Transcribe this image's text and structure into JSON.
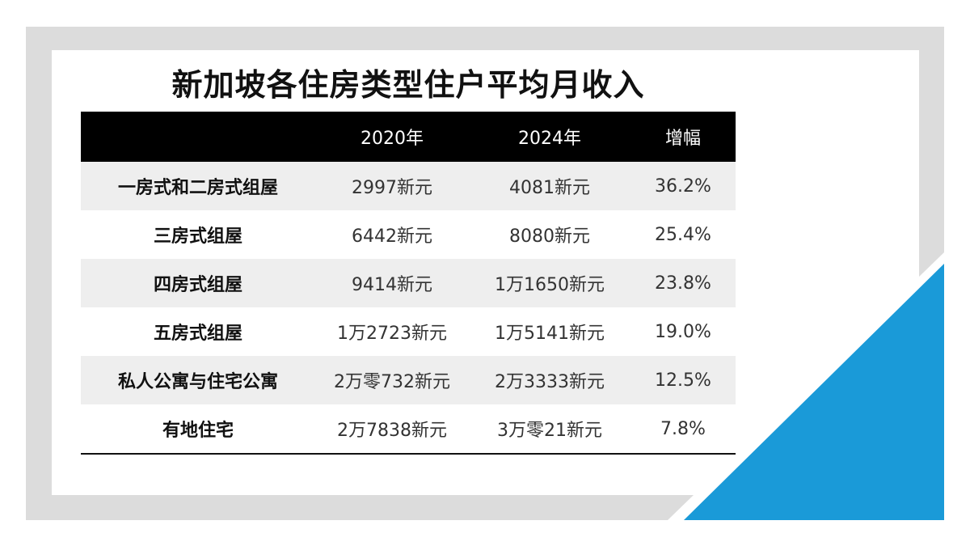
{
  "title": "新加坡各住房类型住户平均月收入",
  "colors": {
    "header_bg": "#000000",
    "stripe": "#eeeeee",
    "accent": "#1a9ad8",
    "frame": "#dcdcdc"
  },
  "chart_data": {
    "type": "table",
    "columns": [
      "",
      "2020年",
      "2024年",
      "增幅"
    ],
    "rows": [
      [
        "一房式和二房式组屋",
        "2997新元",
        "4081新元",
        "36.2%"
      ],
      [
        "三房式组屋",
        "6442新元",
        "8080新元",
        "25.4%"
      ],
      [
        "四房式组屋",
        "9414新元",
        "1万1650新元",
        "23.8%"
      ],
      [
        "五房式组屋",
        "1万2723新元",
        "1万5141新元",
        "19.0%"
      ],
      [
        "私人公寓与住宅公寓",
        "2万零732新元",
        "2万3333新元",
        "12.5%"
      ],
      [
        "有地住宅",
        "2万7838新元",
        "3万零21新元",
        "7.8%"
      ]
    ]
  }
}
